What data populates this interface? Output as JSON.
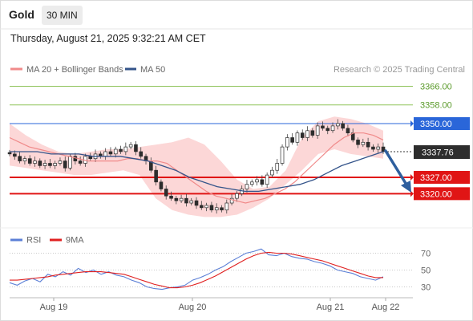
{
  "header": {
    "title": "Gold",
    "timeframe": "30 MIN",
    "datetime": "Thursday, August 21, 2025 9:32:21 AM CET"
  },
  "legend": {
    "ma20": "MA 20 + Bollinger Bands",
    "ma50": "MA 50",
    "credit": "Research © 2025 Trading Central",
    "rsi": "RSI",
    "ma9": "9MA"
  },
  "colors": {
    "resistance": "#8fc35a",
    "pivot": "#2a66d9",
    "support": "#e01515",
    "bands": "#fbd0d0",
    "ma20": "#f08a8a",
    "ma50": "#34548a",
    "rsi": "#5b7fd6",
    "ma9": "#e02020",
    "arrow": "#2e5f9e"
  },
  "chart_data": [
    {
      "type": "candlestick",
      "ylim": [
        3305,
        3372
      ],
      "levels": [
        {
          "value": 3366.0,
          "label": "3366.00",
          "kind": "resistance"
        },
        {
          "value": 3358.0,
          "label": "3358.00",
          "kind": "resistance"
        },
        {
          "value": 3350.0,
          "label": "3350.00",
          "kind": "pivot"
        },
        {
          "value": 3327.0,
          "label": "3327.00",
          "kind": "support"
        },
        {
          "value": 3320.0,
          "label": "3320.00",
          "kind": "support"
        }
      ],
      "last_price": {
        "value": 3337.76,
        "label": "3337.76"
      },
      "forecast": {
        "direction": "down",
        "from": 3337.76,
        "to": 3320.0
      },
      "close_series": [
        3337,
        3336,
        3334,
        3335,
        3333,
        3334,
        3332,
        3333,
        3332,
        3333,
        3334,
        3331,
        3336,
        3334,
        3333,
        3336,
        3335,
        3337,
        3336,
        3338,
        3337,
        3339,
        3338,
        3340,
        3341,
        3338,
        3336,
        3334,
        3330,
        3325,
        3322,
        3319,
        3318,
        3317,
        3318,
        3316,
        3317,
        3315,
        3314,
        3315,
        3313,
        3314,
        3313,
        3316,
        3318,
        3320,
        3322,
        3324,
        3325,
        3326,
        3324,
        3328,
        3330,
        3333,
        3340,
        3344,
        3342,
        3346,
        3344,
        3347,
        3345,
        3349,
        3348,
        3347,
        3349,
        3350,
        3348,
        3346,
        3343,
        3341,
        3342,
        3340,
        3339,
        3340,
        3338
      ],
      "ma20_series": [
        3344,
        3342,
        3340,
        3339,
        3338,
        3337,
        3336,
        3335,
        3334,
        3334,
        3334,
        3334,
        3335,
        3335,
        3334,
        3334,
        3333,
        3330,
        3327,
        3324,
        3321,
        3319,
        3318,
        3317,
        3316,
        3317,
        3318,
        3320,
        3322,
        3325,
        3329,
        3333,
        3337,
        3341,
        3344,
        3346,
        3346,
        3345,
        3343
      ],
      "ma50_series": [
        3338,
        3338,
        3338,
        3337,
        3337,
        3337,
        3336,
        3336,
        3336,
        3335,
        3334,
        3332,
        3330,
        3327,
        3325,
        3323,
        3322,
        3321,
        3321,
        3322,
        3323,
        3324,
        3326,
        3329,
        3332,
        3334,
        3336,
        3338
      ],
      "bands": {
        "upper": [
          3350,
          3345,
          3341,
          3338,
          3337,
          3338,
          3339,
          3339,
          3340,
          3341,
          3342,
          3344,
          3341,
          3334,
          3326,
          3322,
          3323,
          3330,
          3344,
          3351,
          3353,
          3352,
          3350,
          3347
        ],
        "lower": [
          3332,
          3331,
          3330,
          3329,
          3328,
          3328,
          3329,
          3330,
          3328,
          3318,
          3313,
          3311,
          3310,
          3310,
          3311,
          3314,
          3318,
          3324,
          3330,
          3337,
          3339,
          3337,
          3336,
          3335
        ]
      }
    },
    {
      "type": "line",
      "ylim": [
        20,
        80
      ],
      "yticks": [
        70,
        50,
        30
      ],
      "ytick_labels": [
        "70",
        "50",
        "30"
      ],
      "series": [
        {
          "name": "RSI",
          "values": [
            35,
            32,
            37,
            40,
            36,
            45,
            42,
            48,
            44,
            52,
            47,
            50,
            45,
            48,
            44,
            42,
            38,
            35,
            30,
            28,
            27,
            29,
            30,
            32,
            38,
            41,
            45,
            50,
            54,
            60,
            65,
            70,
            72,
            75,
            68,
            67,
            70,
            66,
            64,
            63,
            60,
            58,
            55,
            50,
            48,
            46,
            42,
            40,
            38,
            42
          ]
        },
        {
          "name": "9MA",
          "values": [
            38,
            38,
            39,
            40,
            41,
            42,
            44,
            45,
            46,
            47,
            48,
            48,
            48,
            47,
            46,
            45,
            42,
            39,
            36,
            33,
            31,
            29,
            29,
            30,
            32,
            35,
            39,
            43,
            48,
            53,
            58,
            63,
            67,
            70,
            71,
            70,
            70,
            69,
            67,
            65,
            63,
            61,
            58,
            55,
            52,
            49,
            46,
            43,
            41,
            41
          ]
        }
      ],
      "x_tick_labels": [
        "Aug 19",
        "Aug 20",
        "Aug 21",
        "Aug 22"
      ]
    }
  ]
}
